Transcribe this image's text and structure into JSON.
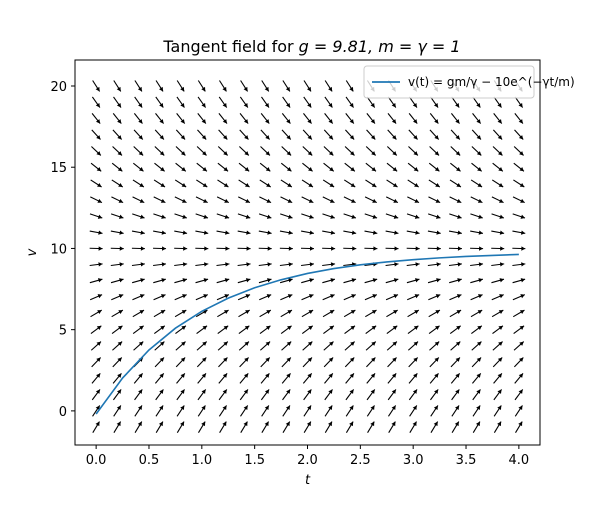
{
  "chart_data": {
    "type": "line",
    "title_prefix": "Tangent field for ",
    "title_math": "g = 9.81, m = γ = 1",
    "xlabel": "t",
    "ylabel": "v",
    "xlim": [
      -0.2,
      4.2
    ],
    "ylim": [
      -2.1,
      21.6
    ],
    "x_ticks": [
      0.0,
      0.5,
      1.0,
      1.5,
      2.0,
      2.5,
      3.0,
      3.5,
      4.0
    ],
    "x_tick_labels": [
      "0.0",
      "0.5",
      "1.0",
      "1.5",
      "2.0",
      "2.5",
      "3.0",
      "3.5",
      "4.0"
    ],
    "y_ticks": [
      0,
      5,
      10,
      15,
      20
    ],
    "y_tick_labels": [
      "0",
      "5",
      "10",
      "15",
      "20"
    ],
    "grid": false,
    "legend_position": "upper-right",
    "legend_label": "v(t) = gm/γ − 10e^(−γt/m)",
    "ode": {
      "g": 9.81,
      "m": 1,
      "gamma": 1
    },
    "series": [
      {
        "name": "v(t) = gm/γ − 10e^(−γt/m)",
        "color": "#1f77b4",
        "x": [
          0.0,
          0.25,
          0.5,
          0.75,
          1.0,
          1.25,
          1.5,
          1.75,
          2.0,
          2.25,
          2.5,
          2.75,
          3.0,
          3.25,
          3.5,
          3.75,
          4.0
        ],
        "y": [
          -0.19,
          2.02,
          3.75,
          5.09,
          6.13,
          6.94,
          7.58,
          8.07,
          8.46,
          8.76,
          8.99,
          9.17,
          9.31,
          9.42,
          9.51,
          9.57,
          9.63
        ]
      }
    ],
    "field": {
      "t": [
        0.0,
        0.2,
        0.4,
        0.6,
        0.8,
        1.0,
        1.2,
        1.4,
        1.6,
        1.8,
        2.0,
        2.2,
        2.4,
        2.6,
        2.8,
        3.0,
        3.2,
        3.4,
        3.6,
        3.8,
        4.0
      ],
      "v": [
        -1,
        0,
        1,
        2,
        3,
        4,
        5,
        6,
        7,
        8,
        9,
        10,
        11,
        12,
        13,
        14,
        15,
        16,
        17,
        18,
        19,
        20
      ],
      "arrow_color": "#000000"
    }
  }
}
